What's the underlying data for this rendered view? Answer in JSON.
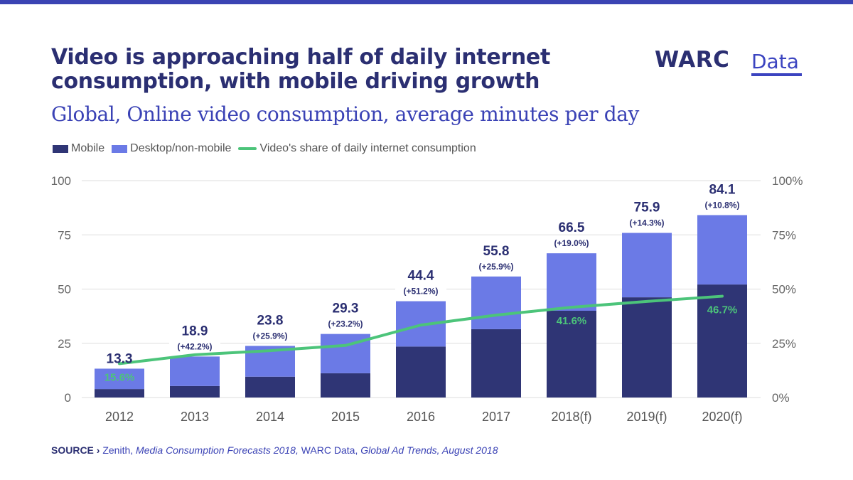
{
  "header": {
    "title_line1": "Video is approaching half of daily internet",
    "title_line2": "consumption, with mobile driving growth",
    "logo_main": "WARC",
    "logo_sub": "Data",
    "subtitle": "Global, Online video consumption, average minutes per day"
  },
  "colors": {
    "topbar": "#3b44b3",
    "mobile": "#2f3575",
    "desktop": "#6b7ae6",
    "line": "#4cc47a",
    "title": "#2b2f72",
    "accent": "#3a42b5"
  },
  "legend": [
    {
      "label": "Mobile",
      "type": "bar"
    },
    {
      "label": "Desktop/non-mobile",
      "type": "bar"
    },
    {
      "label": "Video's share of daily internet consumption",
      "type": "line"
    }
  ],
  "source": {
    "label": "SOURCE ›",
    "parts": [
      {
        "text": " Zenith, ",
        "italic": false
      },
      {
        "text": "Media Consumption Forecasts 2018,",
        "italic": true
      },
      {
        "text": " WARC Data, ",
        "italic": false
      },
      {
        "text": "Global Ad Trends, August 2018",
        "italic": true
      }
    ]
  },
  "chart_data": {
    "type": "bar",
    "stacked": true,
    "title": "Global, Online video consumption, average minutes per day",
    "categories": [
      "2012",
      "2013",
      "2014",
      "2015",
      "2016",
      "2017",
      "2018(f)",
      "2019(f)",
      "2020(f)"
    ],
    "series": [
      {
        "name": "Mobile",
        "type": "bar",
        "axis": "left",
        "values": [
          3.9,
          5.3,
          9.6,
          11.2,
          23.5,
          31.5,
          40.0,
          46.2,
          52.1
        ]
      },
      {
        "name": "Desktop/non-mobile",
        "type": "bar",
        "axis": "left",
        "values": [
          9.4,
          13.6,
          14.2,
          18.1,
          20.9,
          24.3,
          26.5,
          29.7,
          32.0
        ]
      },
      {
        "name": "Video's share of daily internet consumption",
        "type": "line",
        "axis": "right",
        "unit": "%",
        "values": [
          15.6,
          19.7,
          21.6,
          24.0,
          33.4,
          38.0,
          41.6,
          44.3,
          46.7
        ]
      }
    ],
    "totals": [
      13.3,
      18.9,
      23.8,
      29.3,
      44.4,
      55.8,
      66.5,
      75.9,
      84.1
    ],
    "total_labels": [
      "13.3",
      "18.9",
      "23.8",
      "29.3",
      "44.4",
      "55.8",
      "66.5",
      "75.9",
      "84.1"
    ],
    "growth_labels": [
      "",
      "(+42.2%)",
      "(+25.9%)",
      "(+23.2%)",
      "(+51.2%)",
      "(+25.9%)",
      "(+19.0%)",
      "(+14.3%)",
      "(+10.8%)"
    ],
    "line_labels": [
      {
        "index": 0,
        "text": "15.6%"
      },
      {
        "index": 6,
        "text": "41.6%"
      },
      {
        "index": 8,
        "text": "46.7%"
      }
    ],
    "y_left": {
      "ticks": [
        0,
        25,
        50,
        75,
        100
      ],
      "tick_labels": [
        "0",
        "25",
        "50",
        "75",
        "100"
      ],
      "range": [
        0,
        100
      ]
    },
    "y_right": {
      "ticks": [
        0,
        25,
        50,
        75,
        100
      ],
      "tick_labels": [
        "0%",
        "25%",
        "50%",
        "75%",
        "100%"
      ],
      "range": [
        0,
        100
      ]
    },
    "xlabel": "",
    "ylabel": "",
    "grid": true,
    "legend_position": "top-left"
  }
}
